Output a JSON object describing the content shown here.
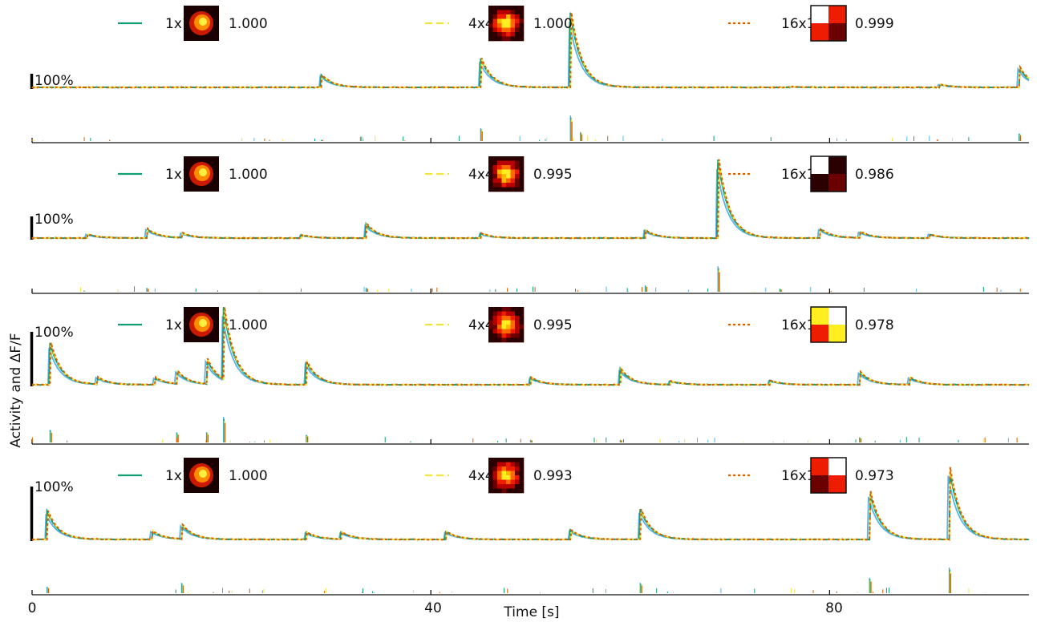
{
  "figure": {
    "ylabel": "Activity and ΔF/F",
    "xlabel": "Time [s]"
  },
  "chart_data": {
    "type": "line",
    "xlabel": "Time [s]",
    "ylabel": "Activity and ΔF/F",
    "xlim": [
      0,
      100
    ],
    "x_ticks": [
      0,
      40,
      80
    ],
    "x_tick_labels": [
      "0",
      "40",
      "80"
    ],
    "scale_bar_label": "100%",
    "colors": {
      "measured_trace": "#56b4e9",
      "1x1": "#109e73",
      "4x4": "#f0e442",
      "16x16": "#d55e00"
    },
    "panels": [
      {
        "legend": [
          {
            "name": "1x1",
            "style": "solid",
            "score": "1.000"
          },
          {
            "name": "4x4",
            "style": "dashed",
            "score": "1.000"
          },
          {
            "name": "16x16",
            "style": "dotted",
            "score": "0.999"
          }
        ],
        "transients": [
          [
            29,
            0.16
          ],
          [
            45,
            0.37
          ],
          [
            54,
            0.95
          ],
          [
            76,
            0.01
          ],
          [
            91,
            0.04
          ],
          [
            99,
            0.26
          ]
        ],
        "spikes": [
          [
            29,
            0.05
          ],
          [
            45,
            0.5
          ],
          [
            54,
            1.0
          ],
          [
            55,
            0.35
          ],
          [
            99,
            0.3
          ]
        ]
      },
      {
        "legend": [
          {
            "name": "1x1",
            "style": "solid",
            "score": "1.000"
          },
          {
            "name": "4x4",
            "style": "dashed",
            "score": "0.995"
          },
          {
            "name": "16x16",
            "style": "dotted",
            "score": "0.986"
          }
        ],
        "transients": [
          [
            5.5,
            0.05
          ],
          [
            11.5,
            0.12
          ],
          [
            15,
            0.06
          ],
          [
            27,
            0.04
          ],
          [
            33.5,
            0.18
          ],
          [
            45,
            0.06
          ],
          [
            61.5,
            0.1
          ],
          [
            68.8,
            1.0
          ],
          [
            79,
            0.12
          ],
          [
            83,
            0.08
          ],
          [
            90,
            0.05
          ]
        ],
        "spikes": [
          [
            11.5,
            0.15
          ],
          [
            33.5,
            0.15
          ],
          [
            61.5,
            0.25
          ],
          [
            68.8,
            1.0
          ],
          [
            75,
            0.12
          ]
        ]
      },
      {
        "legend": [
          {
            "name": "1x1",
            "style": "solid",
            "score": "1.000"
          },
          {
            "name": "4x4",
            "style": "dashed",
            "score": "0.995"
          },
          {
            "name": "16x16",
            "style": "dotted",
            "score": "0.978"
          }
        ],
        "transients": [
          [
            1.8,
            0.58
          ],
          [
            6.5,
            0.1
          ],
          [
            12.3,
            0.1
          ],
          [
            14.5,
            0.18
          ],
          [
            17.5,
            0.35
          ],
          [
            19.2,
            1.0
          ],
          [
            27.5,
            0.32
          ],
          [
            50,
            0.1
          ],
          [
            59,
            0.22
          ],
          [
            64,
            0.05
          ],
          [
            74,
            0.06
          ],
          [
            83,
            0.18
          ],
          [
            88,
            0.1
          ]
        ],
        "spikes": [
          [
            1.8,
            0.5
          ],
          [
            14.5,
            0.4
          ],
          [
            17.5,
            0.4
          ],
          [
            19.2,
            1.0
          ],
          [
            27.5,
            0.3
          ],
          [
            50,
            0.1
          ],
          [
            59,
            0.1
          ],
          [
            83,
            0.2
          ]
        ]
      },
      {
        "legend": [
          {
            "name": "1x1",
            "style": "solid",
            "score": "1.000"
          },
          {
            "name": "4x4",
            "style": "dashed",
            "score": "0.993"
          },
          {
            "name": "16x16",
            "style": "dotted",
            "score": "0.973"
          }
        ],
        "transients": [
          [
            1.5,
            0.4
          ],
          [
            12,
            0.12
          ],
          [
            15,
            0.2
          ],
          [
            27.5,
            0.1
          ],
          [
            31,
            0.1
          ],
          [
            41.5,
            0.11
          ],
          [
            54,
            0.13
          ],
          [
            61,
            0.42
          ],
          [
            84,
            0.67
          ],
          [
            92,
            1.0
          ]
        ],
        "spikes": [
          [
            1.5,
            0.25
          ],
          [
            15,
            0.4
          ],
          [
            61,
            0.4
          ],
          [
            84,
            0.6
          ],
          [
            92,
            1.0
          ]
        ]
      }
    ]
  }
}
